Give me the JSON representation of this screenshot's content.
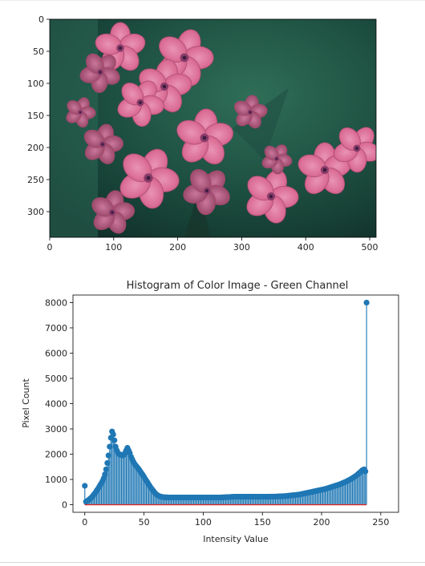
{
  "chart_data": [
    {
      "type": "image",
      "content": "photo of pink phlox flowers",
      "title": "",
      "xlabel": "",
      "ylabel": "",
      "xlim": [
        0,
        510
      ],
      "ylim": [
        340,
        0
      ],
      "xticks": [
        0,
        100,
        200,
        300,
        400,
        500
      ],
      "yticks": [
        0,
        50,
        100,
        150,
        200,
        250,
        300
      ]
    },
    {
      "type": "stem",
      "title": "Histogram of Color Image - Green Channel",
      "xlabel": "Intensity Value",
      "ylabel": "Pixel Count",
      "xlim": [
        -10,
        265
      ],
      "ylim": [
        -300,
        8300
      ],
      "xticks": [
        0,
        50,
        100,
        150,
        200,
        250
      ],
      "yticks": [
        0,
        1000,
        2000,
        3000,
        4000,
        5000,
        6000,
        7000,
        8000
      ],
      "series": [
        {
          "x_start": 0,
          "x_step": 1,
          "values": [
            750,
            120,
            150,
            180,
            220,
            260,
            300,
            360,
            420,
            480,
            560,
            620,
            700,
            780,
            850,
            940,
            1050,
            1200,
            1400,
            1650,
            1950,
            2300,
            2650,
            2900,
            2780,
            2550,
            2300,
            2150,
            2050,
            2000,
            1980,
            1960,
            1950,
            1980,
            2050,
            2150,
            2250,
            2150,
            2050,
            1900,
            1800,
            1700,
            1620,
            1560,
            1500,
            1440,
            1380,
            1310,
            1240,
            1180,
            1100,
            1020,
            950,
            880,
            800,
            730,
            660,
            600,
            540,
            480,
            430,
            390,
            360,
            340,
            320,
            310,
            300,
            295,
            290,
            290,
            290,
            285,
            285,
            285,
            285,
            285,
            285,
            285,
            285,
            285,
            285,
            285,
            285,
            285,
            285,
            285,
            285,
            285,
            285,
            285,
            285,
            285,
            285,
            285,
            285,
            285,
            285,
            285,
            285,
            285,
            285,
            285,
            285,
            285,
            285,
            285,
            285,
            285,
            285,
            285,
            285,
            285,
            285,
            285,
            285,
            285,
            290,
            290,
            295,
            295,
            300,
            300,
            305,
            305,
            310,
            310,
            315,
            315,
            315,
            315,
            315,
            315,
            315,
            315,
            315,
            315,
            315,
            315,
            315,
            315,
            315,
            315,
            315,
            315,
            315,
            315,
            315,
            315,
            315,
            315,
            315,
            315,
            315,
            315,
            315,
            315,
            320,
            320,
            320,
            320,
            320,
            325,
            325,
            325,
            330,
            330,
            335,
            335,
            340,
            340,
            345,
            350,
            355,
            360,
            365,
            370,
            375,
            380,
            385,
            390,
            395,
            400,
            410,
            420,
            430,
            440,
            450,
            460,
            470,
            480,
            490,
            500,
            510,
            520,
            530,
            540,
            550,
            560,
            570,
            580,
            590,
            600,
            610,
            620,
            635,
            650,
            665,
            680,
            695,
            710,
            725,
            740,
            755,
            770,
            785,
            800,
            820,
            840,
            860,
            880,
            900,
            920,
            945,
            970,
            995,
            1020,
            1050,
            1080,
            1110,
            1140,
            1180,
            1220,
            1260,
            1300,
            1350,
            1380,
            1400,
            1320,
            8000
          ]
        }
      ]
    }
  ]
}
